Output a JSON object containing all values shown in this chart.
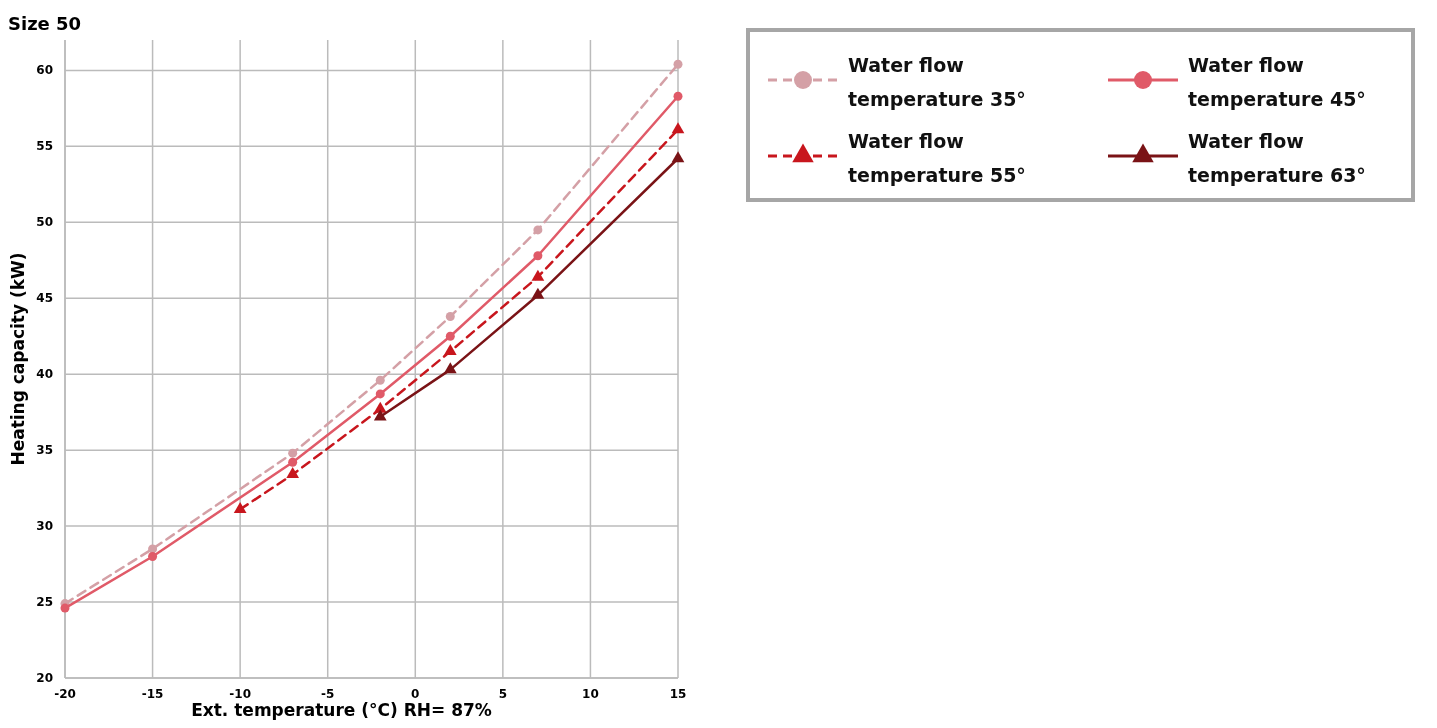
{
  "chart_data": {
    "type": "line",
    "title": "Size 50",
    "xlabel": "Ext. temperature (°C) RH= 87%",
    "ylabel": "Heating capacity (kW)",
    "xlim": [
      -20,
      15
    ],
    "xticks": [
      -20,
      -15,
      -10,
      -5,
      0,
      5,
      10,
      15
    ],
    "ylim": [
      20,
      62
    ],
    "yticks": [
      20,
      25,
      30,
      35,
      40,
      45,
      50,
      55,
      60
    ],
    "grid": true,
    "legend": "top right",
    "series": [
      {
        "name": "Water flow temperature 35°",
        "color": "#d4a0a6",
        "marker": "circle",
        "line_style": "dashed",
        "x": [
          -20,
          -15,
          -7,
          -2,
          2,
          7,
          15
        ],
        "values": [
          24.9,
          28.5,
          34.8,
          39.6,
          43.8,
          49.5,
          60.4
        ]
      },
      {
        "name": "Water flow temperature 45°",
        "color": "#e05a68",
        "marker": "circle",
        "line_style": "solid",
        "x": [
          -20,
          -15,
          -7,
          -2,
          2,
          7,
          15
        ],
        "values": [
          24.6,
          28.0,
          34.2,
          38.7,
          42.5,
          47.8,
          58.3
        ]
      },
      {
        "name": "Water flow temperature 55°",
        "color": "#c8161d",
        "marker": "triangle",
        "line_style": "dashed",
        "x": [
          -10,
          -7,
          -2,
          2,
          7,
          15
        ],
        "values": [
          31.1,
          33.4,
          37.7,
          41.5,
          46.4,
          56.1
        ]
      },
      {
        "name": "Water flow temperature 63°",
        "color": "#7a1316",
        "marker": "triangle",
        "line_style": "solid",
        "x": [
          -2,
          2,
          7,
          15
        ],
        "values": [
          37.2,
          40.3,
          45.2,
          54.2
        ]
      }
    ]
  }
}
